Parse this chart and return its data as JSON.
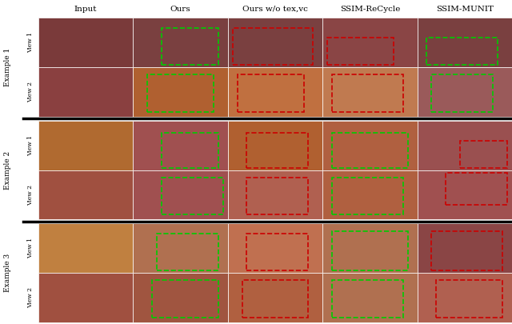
{
  "col_labels": [
    "Input",
    "Ours",
    "Ours w/o tex,vc",
    "SSIM-ReCycle",
    "SSIM-MUNIT"
  ],
  "row_group_labels": [
    "Example 1",
    "Example 2",
    "Example 3"
  ],
  "row_view_labels": [
    "View 1",
    "View 2"
  ],
  "n_cols": 5,
  "n_examples": 3,
  "n_views": 2,
  "background_color": "#ffffff",
  "separator_color": "#000000",
  "col_label_fontsize": 7.5,
  "row_label_fontsize": 6.5,
  "view_label_fontsize": 5.5,
  "example_colors_input": [
    [
      "#7a3535",
      "#7a3535"
    ],
    [
      "#c47040",
      "#a05050"
    ],
    [
      "#c88040",
      "#7a3535"
    ]
  ],
  "example_colors_ours": [
    [
      "#8b5050",
      "#c07030"
    ],
    [
      "#b06030",
      "#a05030"
    ],
    [
      "#b06030",
      "#a05030"
    ]
  ],
  "example_colors_wotex": [
    [
      "#8b5050",
      "#c07030"
    ],
    [
      "#b06030",
      "#a05030"
    ],
    [
      "#b06030",
      "#a05030"
    ]
  ],
  "example_colors_recycle": [
    [
      "#8b5050",
      "#c07030"
    ],
    [
      "#b06030",
      "#a05030"
    ],
    [
      "#b06030",
      "#a05030"
    ]
  ],
  "example_colors_munit": [
    [
      "#8b5050",
      "#c07030"
    ],
    [
      "#b06030",
      "#a05030"
    ],
    [
      "#b06030",
      "#a05030"
    ]
  ],
  "green_box_color": "#00cc00",
  "red_box_color": "#cc0000",
  "black_box_color": "#000000"
}
